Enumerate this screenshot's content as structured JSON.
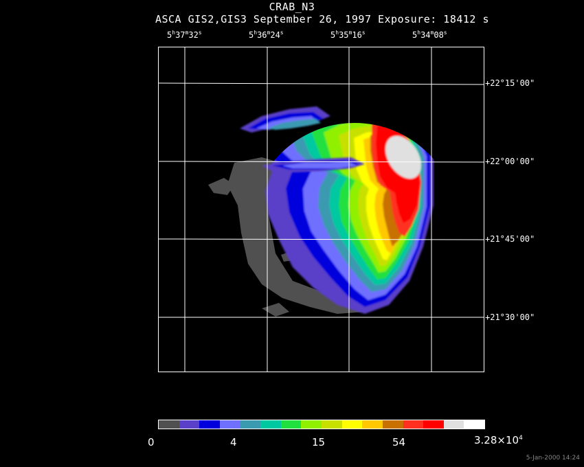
{
  "title": "CRAB_N3",
  "subtitle": "ASCA GIS2,GIS3 September 26, 1997 Exposure: 18412 s",
  "ra_labels": [
    {
      "h": "5",
      "m": "37",
      "s": "32"
    },
    {
      "h": "5",
      "m": "36",
      "s": "24"
    },
    {
      "h": "5",
      "m": "35",
      "s": "16"
    },
    {
      "h": "5",
      "m": "34",
      "s": "08"
    }
  ],
  "dec_labels": [
    "+22°15'00\"",
    "+22°00'00\"",
    "+21°45'00\"",
    "+21°30'00\""
  ],
  "colorbar": {
    "colors": [
      "#505050",
      "#5a3fc8",
      "#0000dd",
      "#7070ff",
      "#3a9ab0",
      "#00c8a0",
      "#20e040",
      "#90f000",
      "#c8e000",
      "#ffff00",
      "#ffc800",
      "#c87000",
      "#ff3020",
      "#ff0000",
      "#e0e0e0",
      "#ffffff"
    ],
    "labels": [
      "0",
      "4",
      "15",
      "54"
    ],
    "max_label": {
      "mantissa": "3.28×10",
      "exponent": "4"
    }
  },
  "timestamp": "5-Jan-2000 14:24"
}
